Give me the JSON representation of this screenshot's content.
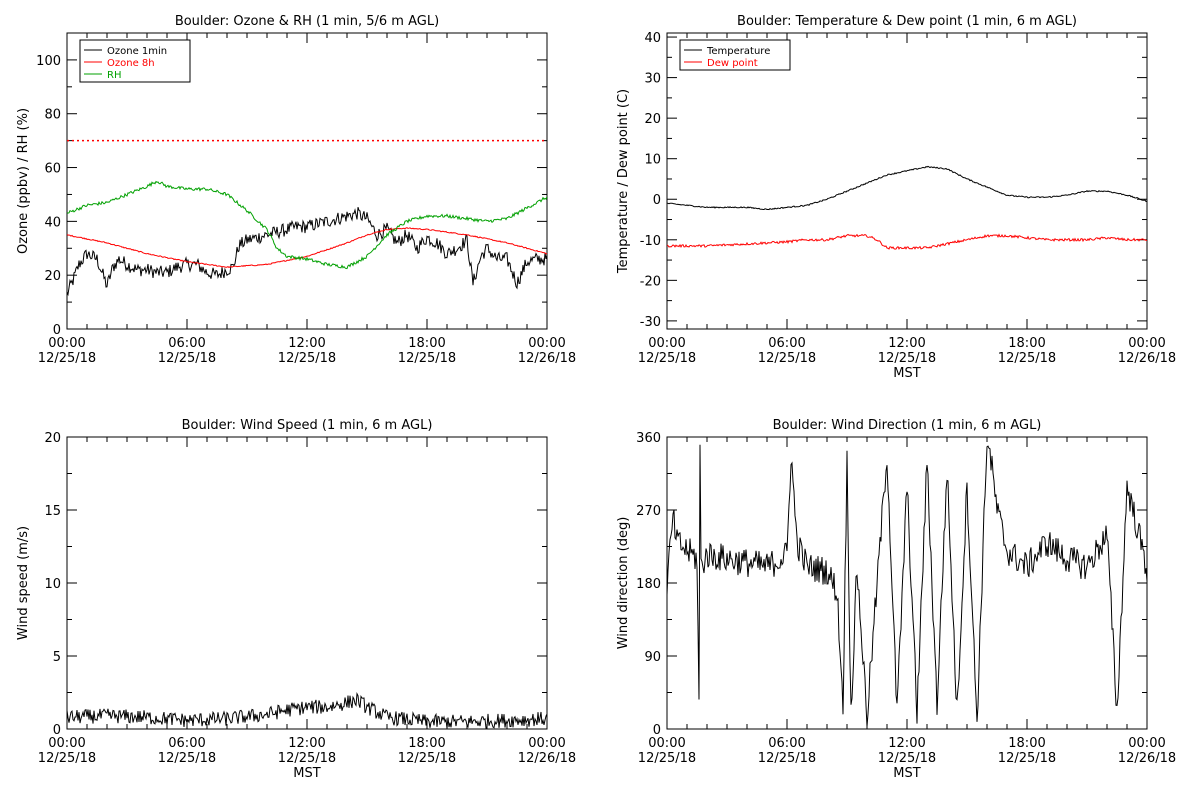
{
  "chart_data": [
    {
      "type": "line",
      "title": "Boulder: Ozone & RH (1 min, 5/6 m AGL)",
      "xlabel": "",
      "ylabel": "Ozone (ppbv) / RH (%)",
      "xlim": [
        0,
        24
      ],
      "ylim": [
        0,
        110
      ],
      "xticks": [
        0,
        6,
        12,
        18,
        24
      ],
      "xtick_labels": [
        {
          "time": "00:00",
          "date": "12/25/18"
        },
        {
          "time": "06:00",
          "date": "12/25/18"
        },
        {
          "time": "12:00",
          "date": "12/25/18"
        },
        {
          "time": "18:00",
          "date": "12/25/18"
        },
        {
          "time": "00:00",
          "date": "12/26/18"
        }
      ],
      "yticks": [
        0,
        20,
        40,
        60,
        80,
        100
      ],
      "ytick_labels": [
        "0",
        "20",
        "40",
        "60",
        "80",
        "100"
      ],
      "legend": "top-left",
      "grid": false,
      "reference_line": {
        "y": 70,
        "color": "#ff0000",
        "style": "dotted"
      },
      "series": [
        {
          "name": "Ozone 1min",
          "color": "#000000",
          "noise": 2.5,
          "x": [
            0,
            0.3,
            0.6,
            1,
            1.5,
            2,
            2.3,
            2.6,
            3,
            3.5,
            4,
            4.5,
            5,
            5.5,
            6,
            6.5,
            7,
            7.5,
            8,
            8.3,
            8.6,
            9,
            9.5,
            10,
            10.5,
            11,
            11.5,
            12,
            12.5,
            13,
            13.5,
            14,
            14.5,
            15,
            15.5,
            16,
            16.5,
            17,
            17.5,
            18,
            18.5,
            19,
            19.5,
            20,
            20.3,
            20.7,
            21,
            21.5,
            22,
            22.5,
            23,
            23.5,
            24
          ],
          "y": [
            13,
            18,
            24,
            28,
            26,
            16,
            23,
            26,
            24,
            22,
            22,
            21,
            21,
            23,
            24,
            24,
            21,
            20,
            22,
            23,
            31,
            33,
            34,
            35,
            36,
            37,
            38,
            38,
            39,
            40,
            41,
            42,
            43,
            41,
            35,
            37,
            32,
            35,
            30,
            34,
            32,
            28,
            30,
            33,
            17,
            27,
            30,
            26,
            26,
            17,
            25,
            26,
            26
          ]
        },
        {
          "name": "Ozone 8h",
          "color": "#ff0000",
          "noise": 0.2,
          "x": [
            0,
            2,
            4,
            6,
            8,
            9,
            10,
            12,
            14,
            15,
            16,
            17,
            18,
            20,
            22,
            24
          ],
          "y": [
            35,
            32,
            28,
            25,
            23,
            23.5,
            24,
            27,
            32,
            35,
            37,
            37.5,
            37,
            35,
            32,
            28
          ]
        },
        {
          "name": "RH",
          "color": "#00a000",
          "noise": 0.6,
          "x": [
            0,
            1,
            2,
            3,
            4,
            4.5,
            5,
            6,
            7,
            8,
            9,
            10,
            10.5,
            11,
            12,
            13,
            14,
            15,
            16,
            17,
            18,
            19,
            20,
            21,
            22,
            23,
            24
          ],
          "y": [
            43,
            46,
            47,
            50,
            53,
            55,
            53,
            52,
            52,
            50,
            44,
            37,
            30,
            27,
            26,
            24,
            23,
            27,
            35,
            40,
            42,
            42,
            41,
            40,
            41,
            45,
            49
          ]
        }
      ]
    },
    {
      "type": "line",
      "title": "Boulder: Temperature & Dew point (1 min, 6 m AGL)",
      "xlabel": "MST",
      "ylabel": "Temperature / Dew point (C)",
      "xlim": [
        0,
        24
      ],
      "ylim": [
        -32,
        41
      ],
      "xticks": [
        0,
        6,
        12,
        18,
        24
      ],
      "xtick_labels": [
        {
          "time": "00:00",
          "date": "12/25/18"
        },
        {
          "time": "06:00",
          "date": "12/25/18"
        },
        {
          "time": "12:00",
          "date": "12/25/18"
        },
        {
          "time": "18:00",
          "date": "12/25/18"
        },
        {
          "time": "00:00",
          "date": "12/26/18"
        }
      ],
      "yticks": [
        -30,
        -20,
        -10,
        0,
        10,
        20,
        30,
        40
      ],
      "ytick_labels": [
        "-30",
        "-20",
        "-10",
        "0",
        "10",
        "20",
        "30",
        "40"
      ],
      "legend": "top-left",
      "grid": false,
      "series": [
        {
          "name": "Temperature",
          "color": "#000000",
          "noise": 0.15,
          "x": [
            0,
            2,
            4,
            5,
            6,
            7,
            8,
            9,
            10,
            11,
            12,
            13,
            14,
            15,
            16,
            17,
            18,
            19,
            20,
            21,
            22,
            23,
            24
          ],
          "y": [
            -1,
            -2,
            -2,
            -2.5,
            -2,
            -1.5,
            0,
            2,
            4,
            6,
            7,
            8,
            7.5,
            5,
            3,
            1,
            0.5,
            0.5,
            1,
            2,
            2,
            1,
            -0.5
          ]
        },
        {
          "name": "Dew point",
          "color": "#ff0000",
          "noise": 0.3,
          "x": [
            0,
            2,
            4,
            6,
            7,
            8,
            9,
            10,
            10.5,
            11,
            12,
            13,
            14,
            15,
            16,
            17,
            18,
            19,
            20,
            21,
            22,
            23,
            24
          ],
          "y": [
            -11.5,
            -11.5,
            -11,
            -10.5,
            -10,
            -10,
            -9,
            -9,
            -10,
            -12,
            -12,
            -12,
            -11,
            -10,
            -9,
            -9,
            -9.5,
            -10,
            -10,
            -10,
            -9.5,
            -10,
            -10
          ]
        }
      ]
    },
    {
      "type": "line",
      "title": "Boulder: Wind Speed (1 min, 6 m AGL)",
      "xlabel": "MST",
      "ylabel": "Wind speed (m/s)",
      "xlim": [
        0,
        24
      ],
      "ylim": [
        0,
        20
      ],
      "xticks": [
        0,
        6,
        12,
        18,
        24
      ],
      "xtick_labels": [
        {
          "time": "00:00",
          "date": "12/25/18"
        },
        {
          "time": "06:00",
          "date": "12/25/18"
        },
        {
          "time": "12:00",
          "date": "12/25/18"
        },
        {
          "time": "18:00",
          "date": "12/25/18"
        },
        {
          "time": "00:00",
          "date": "12/26/18"
        }
      ],
      "yticks": [
        0,
        5,
        10,
        15,
        20
      ],
      "ytick_labels": [
        "0",
        "5",
        "10",
        "15",
        "20"
      ],
      "grid": false,
      "series": [
        {
          "color": "#000000",
          "noise": 0.5,
          "x": [
            0,
            2,
            4,
            6,
            8,
            10,
            11,
            12,
            13,
            14,
            14.5,
            15,
            16,
            18,
            20,
            22,
            24
          ],
          "y": [
            0.8,
            0.9,
            0.8,
            0.6,
            0.7,
            1.0,
            1.3,
            1.5,
            1.5,
            1.8,
            2.0,
            1.5,
            0.8,
            0.5,
            0.5,
            0.6,
            0.7
          ]
        }
      ]
    },
    {
      "type": "line",
      "title": "Boulder: Wind Direction (1 min, 6 m AGL)",
      "xlabel": "MST",
      "ylabel": "Wind direction (deg)",
      "xlim": [
        0,
        24
      ],
      "ylim": [
        0,
        360
      ],
      "xticks": [
        0,
        6,
        12,
        18,
        24
      ],
      "xtick_labels": [
        {
          "time": "00:00",
          "date": "12/25/18"
        },
        {
          "time": "06:00",
          "date": "12/25/18"
        },
        {
          "time": "12:00",
          "date": "12/25/18"
        },
        {
          "time": "18:00",
          "date": "12/25/18"
        },
        {
          "time": "00:00",
          "date": "12/26/18"
        }
      ],
      "yticks": [
        0,
        90,
        180,
        270,
        360
      ],
      "ytick_labels": [
        "0",
        "90",
        "180",
        "270",
        "360"
      ],
      "grid": false,
      "series": [
        {
          "color": "#000000",
          "noise": 18,
          "x": [
            0,
            0.3,
            0.5,
            1,
            1.5,
            1.6,
            1.65,
            1.7,
            2,
            3,
            4,
            5,
            6,
            6.2,
            6.5,
            7,
            8,
            8.5,
            8.8,
            9,
            9.2,
            9.5,
            10,
            11,
            11.5,
            12,
            12.5,
            13,
            13.5,
            14,
            14.5,
            15,
            15.5,
            16,
            16.2,
            16.5,
            17,
            18,
            19,
            20,
            21,
            22,
            22.5,
            23,
            23.5,
            24
          ],
          "y": [
            180,
            260,
            230,
            220,
            210,
            30,
            350,
            200,
            215,
            210,
            205,
            200,
            215,
            340,
            230,
            200,
            195,
            170,
            30,
            330,
            20,
            200,
            15,
            340,
            20,
            300,
            20,
            330,
            30,
            320,
            20,
            300,
            10,
            360,
            330,
            270,
            220,
            200,
            230,
            210,
            200,
            240,
            20,
            300,
            250,
            195
          ]
        }
      ]
    }
  ]
}
